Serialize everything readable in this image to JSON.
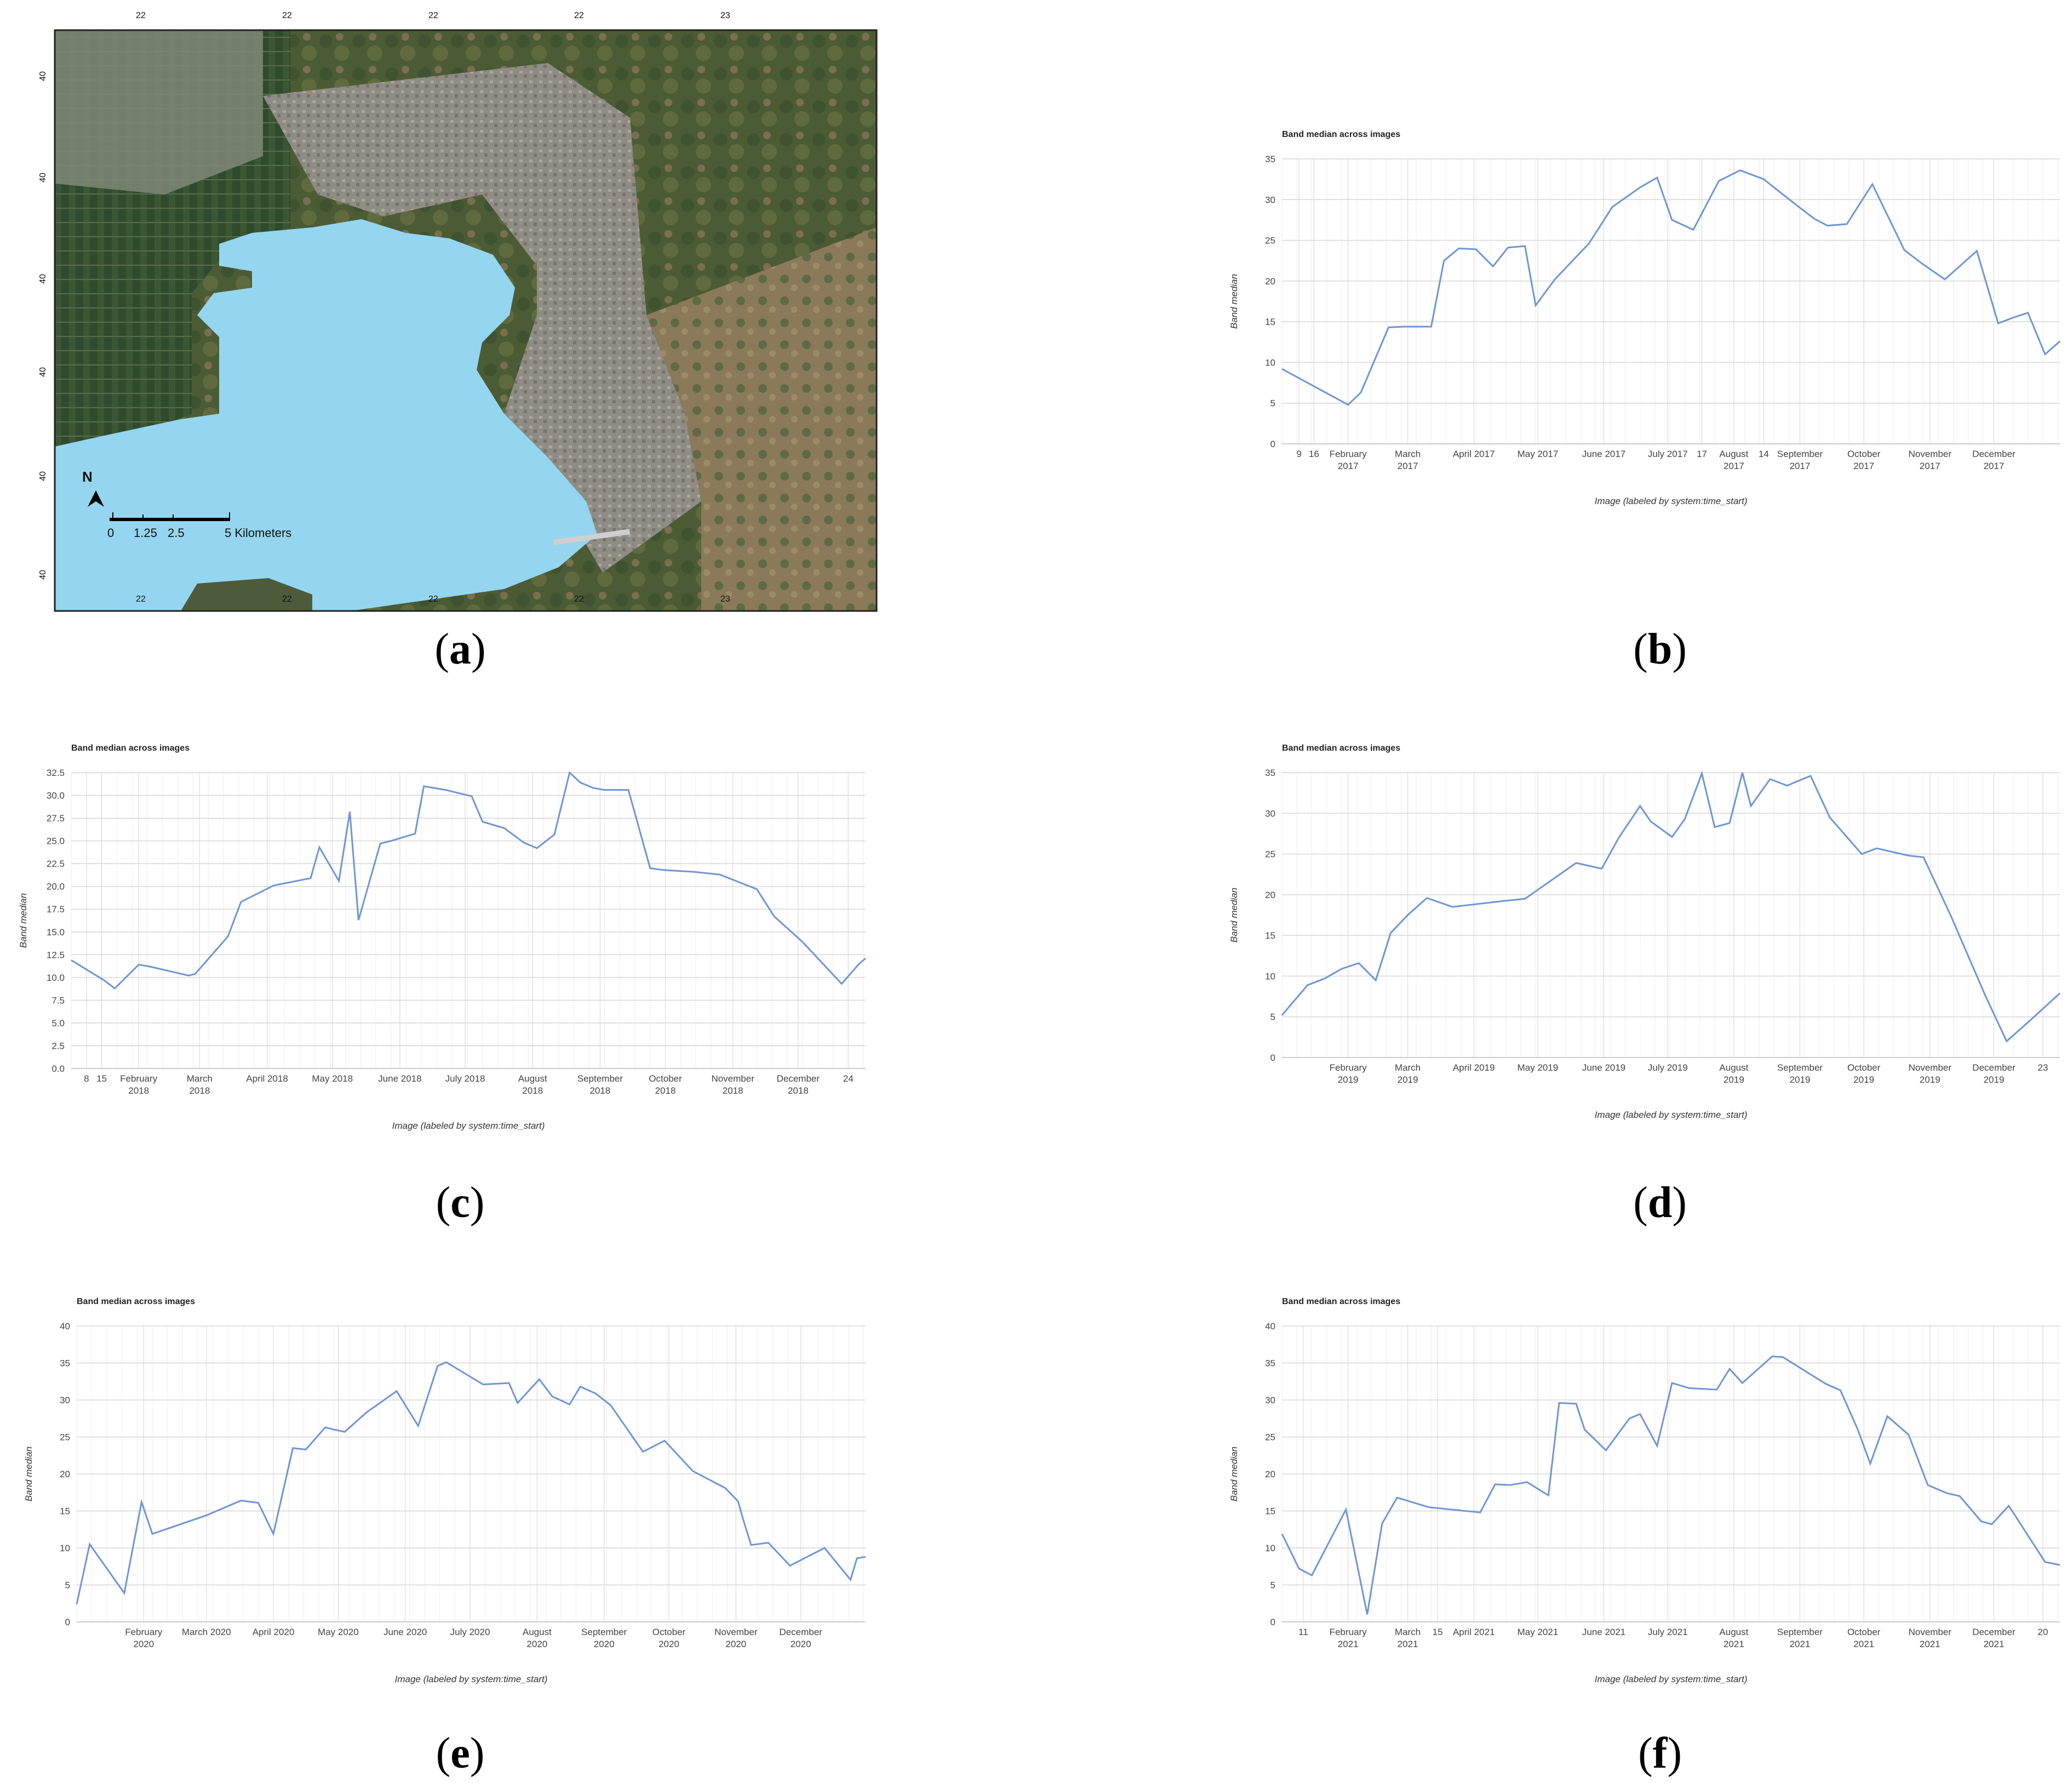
{
  "captions": {
    "a": "a",
    "b": "b",
    "c": "c",
    "d": "d",
    "e": "e",
    "f": "f"
  },
  "map": {
    "north": "N",
    "scale_ticks": [
      "0",
      "1.25",
      "2.5"
    ],
    "scale_unit": "5 Kilometers",
    "lon_labels_top": [
      "22",
      "22",
      "22",
      "22",
      "23"
    ],
    "lon_labels_bottom": [
      "22",
      "22",
      "22",
      "22",
      "23"
    ],
    "lat_labels": [
      "40",
      "40",
      "40",
      "40",
      "40",
      "40"
    ],
    "colors": {
      "water": "#94d6ef",
      "land": "#4d5a3a",
      "urban": "#8e8c84"
    }
  },
  "chart_data": [
    {
      "id": "b",
      "type": "line",
      "title": "Band median across images",
      "xlabel": "Image (labeled by system:time_start)",
      "ylabel": "Band median",
      "ylim": [
        0,
        35
      ],
      "yticks": [
        "0",
        "5",
        "10",
        "15",
        "20",
        "25",
        "30",
        "35"
      ],
      "xlim": [
        0,
        365
      ],
      "xticks": [
        {
          "x": 8,
          "l1": "9",
          "l2": ""
        },
        {
          "x": 15,
          "l1": "16",
          "l2": ""
        },
        {
          "x": 31,
          "l1": "February",
          "l2": "2017"
        },
        {
          "x": 59,
          "l1": "March",
          "l2": "2017"
        },
        {
          "x": 90,
          "l1": "April 2017",
          "l2": ""
        },
        {
          "x": 120,
          "l1": "May 2017",
          "l2": ""
        },
        {
          "x": 151,
          "l1": "June 2017",
          "l2": ""
        },
        {
          "x": 181,
          "l1": "July 2017",
          "l2": ""
        },
        {
          "x": 197,
          "l1": "17",
          "l2": ""
        },
        {
          "x": 212,
          "l1": "August",
          "l2": "2017"
        },
        {
          "x": 226,
          "l1": "14",
          "l2": ""
        },
        {
          "x": 243,
          "l1": "September",
          "l2": "2017"
        },
        {
          "x": 273,
          "l1": "October",
          "l2": "2017"
        },
        {
          "x": 304,
          "l1": "November",
          "l2": "2017"
        },
        {
          "x": 334,
          "l1": "December",
          "l2": "2017"
        }
      ],
      "x": [
        0,
        31,
        37,
        50,
        57,
        70,
        76,
        83,
        91,
        99,
        106,
        114,
        119,
        128,
        144,
        155,
        168,
        176,
        183,
        193,
        205,
        215,
        226,
        241,
        250,
        256,
        265,
        277,
        292,
        300,
        311,
        326,
        336,
        343,
        350,
        358,
        365
      ],
      "y": [
        9.2,
        4.8,
        6.3,
        14.3,
        14.4,
        14.4,
        22.5,
        24.0,
        23.9,
        21.8,
        24.1,
        24.3,
        17.0,
        20.2,
        24.6,
        29.1,
        31.5,
        32.7,
        27.5,
        26.3,
        32.3,
        33.6,
        32.5,
        29.4,
        27.6,
        26.8,
        27.0,
        31.9,
        23.8,
        22.2,
        20.2,
        23.7,
        14.8,
        15.5,
        16.1,
        11.0,
        12.6
      ]
    },
    {
      "id": "c",
      "type": "line",
      "title": "Band median across images",
      "xlabel": "Image (labeled by system:time_start)",
      "ylabel": "Band median",
      "ylim": [
        0,
        32.5
      ],
      "yticks": [
        "0.0",
        "2.5",
        "5.0",
        "7.5",
        "10.0",
        "12.5",
        "15.0",
        "17.5",
        "20.0",
        "22.5",
        "25.0",
        "27.5",
        "30.0",
        "32.5"
      ],
      "xlim": [
        0,
        365
      ],
      "xticks": [
        {
          "x": 7,
          "l1": "8",
          "l2": ""
        },
        {
          "x": 14,
          "l1": "15",
          "l2": ""
        },
        {
          "x": 31,
          "l1": "February",
          "l2": "2018"
        },
        {
          "x": 59,
          "l1": "March",
          "l2": "2018"
        },
        {
          "x": 90,
          "l1": "April 2018",
          "l2": ""
        },
        {
          "x": 120,
          "l1": "May 2018",
          "l2": ""
        },
        {
          "x": 151,
          "l1": "June 2018",
          "l2": ""
        },
        {
          "x": 181,
          "l1": "July 2018",
          "l2": ""
        },
        {
          "x": 212,
          "l1": "August",
          "l2": "2018"
        },
        {
          "x": 243,
          "l1": "September",
          "l2": "2018"
        },
        {
          "x": 273,
          "l1": "October",
          "l2": "2018"
        },
        {
          "x": 304,
          "l1": "November",
          "l2": "2018"
        },
        {
          "x": 334,
          "l1": "December",
          "l2": "2018"
        },
        {
          "x": 357,
          "l1": "24",
          "l2": ""
        }
      ],
      "x": [
        0,
        15,
        20,
        31,
        36,
        54,
        57,
        72,
        78,
        93,
        110,
        114,
        123,
        128,
        132,
        142,
        147,
        158,
        162,
        172,
        184,
        189,
        199,
        208,
        214,
        222,
        229,
        234,
        240,
        245,
        256,
        266,
        272,
        286,
        298,
        315,
        323,
        336,
        354,
        362,
        365
      ],
      "y": [
        11.9,
        9.7,
        8.8,
        11.4,
        11.2,
        10.2,
        10.4,
        14.5,
        18.3,
        20.1,
        20.9,
        24.3,
        20.6,
        28.2,
        16.3,
        24.7,
        25.0,
        25.8,
        31.0,
        30.6,
        29.9,
        27.1,
        26.4,
        24.8,
        24.2,
        25.7,
        32.5,
        31.4,
        30.8,
        30.6,
        30.6,
        22.0,
        21.8,
        21.6,
        21.3,
        19.7,
        16.7,
        13.9,
        9.3,
        11.5,
        12.1
      ]
    },
    {
      "id": "d",
      "type": "line",
      "title": "Band median across images",
      "xlabel": "Image (labeled by system:time_start)",
      "ylabel": "Band median",
      "ylim": [
        0,
        35
      ],
      "yticks": [
        "0",
        "5",
        "10",
        "15",
        "20",
        "25",
        "30",
        "35"
      ],
      "xlim": [
        0,
        365
      ],
      "xticks": [
        {
          "x": 31,
          "l1": "February",
          "l2": "2019"
        },
        {
          "x": 59,
          "l1": "March",
          "l2": "2019"
        },
        {
          "x": 90,
          "l1": "April 2019",
          "l2": ""
        },
        {
          "x": 120,
          "l1": "May 2019",
          "l2": ""
        },
        {
          "x": 151,
          "l1": "June 2019",
          "l2": ""
        },
        {
          "x": 181,
          "l1": "July 2019",
          "l2": ""
        },
        {
          "x": 212,
          "l1": "August",
          "l2": "2019"
        },
        {
          "x": 243,
          "l1": "September",
          "l2": "2019"
        },
        {
          "x": 273,
          "l1": "October",
          "l2": "2019"
        },
        {
          "x": 304,
          "l1": "November",
          "l2": "2019"
        },
        {
          "x": 334,
          "l1": "December",
          "l2": "2019"
        },
        {
          "x": 357,
          "l1": "23",
          "l2": ""
        }
      ],
      "x": [
        0,
        12,
        20,
        28,
        36,
        44,
        51,
        59,
        68,
        80,
        103,
        114,
        138,
        150,
        158,
        168,
        173,
        183,
        189,
        197,
        203,
        210,
        216,
        220,
        229,
        237,
        248,
        257,
        272,
        279,
        294,
        301,
        314,
        330,
        340,
        352,
        365
      ],
      "y": [
        5.2,
        8.9,
        9.7,
        10.9,
        11.6,
        9.5,
        15.3,
        17.5,
        19.6,
        18.5,
        19.2,
        19.5,
        23.9,
        23.2,
        27.0,
        30.9,
        29.0,
        27.1,
        29.3,
        34.9,
        28.3,
        28.8,
        35.0,
        30.9,
        34.2,
        33.4,
        34.6,
        29.5,
        25.0,
        25.7,
        24.8,
        24.6,
        17.3,
        7.6,
        2.0,
        4.8,
        7.9
      ]
    },
    {
      "id": "e",
      "type": "line",
      "title": "Band median across images",
      "xlabel": "Image (labeled by system:time_start)",
      "ylabel": "Band median",
      "ylim": [
        0,
        40
      ],
      "yticks": [
        "0",
        "5",
        "10",
        "15",
        "20",
        "25",
        "30",
        "35",
        "40"
      ],
      "xlim": [
        0,
        365
      ],
      "xticks": [
        {
          "x": 31,
          "l1": "February",
          "l2": "2020"
        },
        {
          "x": 60,
          "l1": "March 2020",
          "l2": ""
        },
        {
          "x": 91,
          "l1": "April 2020",
          "l2": ""
        },
        {
          "x": 121,
          "l1": "May 2020",
          "l2": ""
        },
        {
          "x": 152,
          "l1": "June 2020",
          "l2": ""
        },
        {
          "x": 182,
          "l1": "July 2020",
          "l2": ""
        },
        {
          "x": 213,
          "l1": "August",
          "l2": "2020"
        },
        {
          "x": 244,
          "l1": "September",
          "l2": "2020"
        },
        {
          "x": 274,
          "l1": "October",
          "l2": "2020"
        },
        {
          "x": 305,
          "l1": "November",
          "l2": "2020"
        },
        {
          "x": 335,
          "l1": "December",
          "l2": "2020"
        }
      ],
      "x": [
        0,
        6,
        22,
        30,
        35,
        60,
        76,
        84,
        91,
        100,
        106,
        115,
        119,
        124,
        134,
        148,
        158,
        167,
        171,
        179,
        188,
        200,
        204,
        214,
        220,
        228,
        233,
        240,
        247,
        262,
        272,
        285,
        300,
        306,
        308,
        312,
        320,
        330,
        346,
        358,
        361,
        365
      ],
      "y": [
        2.4,
        10.5,
        3.9,
        16.2,
        11.9,
        14.4,
        16.4,
        16.1,
        11.9,
        23.5,
        23.3,
        26.3,
        26.0,
        25.7,
        28.3,
        31.2,
        26.5,
        34.6,
        35.1,
        33.7,
        32.1,
        32.3,
        29.6,
        32.8,
        30.5,
        29.4,
        31.8,
        30.9,
        29.3,
        23.0,
        24.5,
        20.4,
        18.1,
        16.3,
        14.2,
        10.4,
        10.7,
        7.6,
        10.0,
        5.7,
        8.6,
        8.8
      ]
    },
    {
      "id": "f",
      "type": "line",
      "title": "Band median across images",
      "xlabel": "Image (labeled by system:time_start)",
      "ylabel": "Band median",
      "ylim": [
        0,
        40
      ],
      "yticks": [
        "0",
        "5",
        "10",
        "15",
        "20",
        "25",
        "30",
        "35",
        "40"
      ],
      "xlim": [
        0,
        365
      ],
      "xticks": [
        {
          "x": 10,
          "l1": "11",
          "l2": ""
        },
        {
          "x": 31,
          "l1": "February",
          "l2": "2021"
        },
        {
          "x": 59,
          "l1": "March",
          "l2": "2021"
        },
        {
          "x": 73,
          "l1": "15",
          "l2": ""
        },
        {
          "x": 90,
          "l1": "April 2021",
          "l2": ""
        },
        {
          "x": 120,
          "l1": "May 2021",
          "l2": ""
        },
        {
          "x": 151,
          "l1": "June 2021",
          "l2": ""
        },
        {
          "x": 181,
          "l1": "July 2021",
          "l2": ""
        },
        {
          "x": 212,
          "l1": "August",
          "l2": "2021"
        },
        {
          "x": 243,
          "l1": "September",
          "l2": "2021"
        },
        {
          "x": 273,
          "l1": "October",
          "l2": "2021"
        },
        {
          "x": 304,
          "l1": "November",
          "l2": "2021"
        },
        {
          "x": 334,
          "l1": "December",
          "l2": "2021"
        },
        {
          "x": 357,
          "l1": "20",
          "l2": ""
        }
      ],
      "x": [
        0,
        8,
        14,
        30,
        40,
        47,
        54,
        69,
        93,
        100,
        107,
        115,
        125,
        130,
        138,
        142,
        152,
        163,
        168,
        176,
        183,
        191,
        204,
        210,
        216,
        230,
        235,
        255,
        262,
        270,
        276,
        284,
        294,
        303,
        312,
        318,
        328,
        333,
        341,
        358,
        365
      ],
      "y": [
        11.9,
        7.2,
        6.3,
        15.2,
        1.0,
        13.3,
        16.8,
        15.5,
        14.8,
        18.6,
        18.5,
        18.9,
        17.1,
        29.6,
        29.5,
        26.0,
        23.2,
        27.5,
        28.1,
        23.8,
        32.3,
        31.6,
        31.4,
        34.2,
        32.3,
        35.9,
        35.8,
        32.2,
        31.3,
        26.1,
        21.4,
        27.8,
        25.3,
        18.5,
        17.4,
        17.0,
        13.6,
        13.2,
        15.7,
        8.1,
        7.7
      ]
    }
  ]
}
